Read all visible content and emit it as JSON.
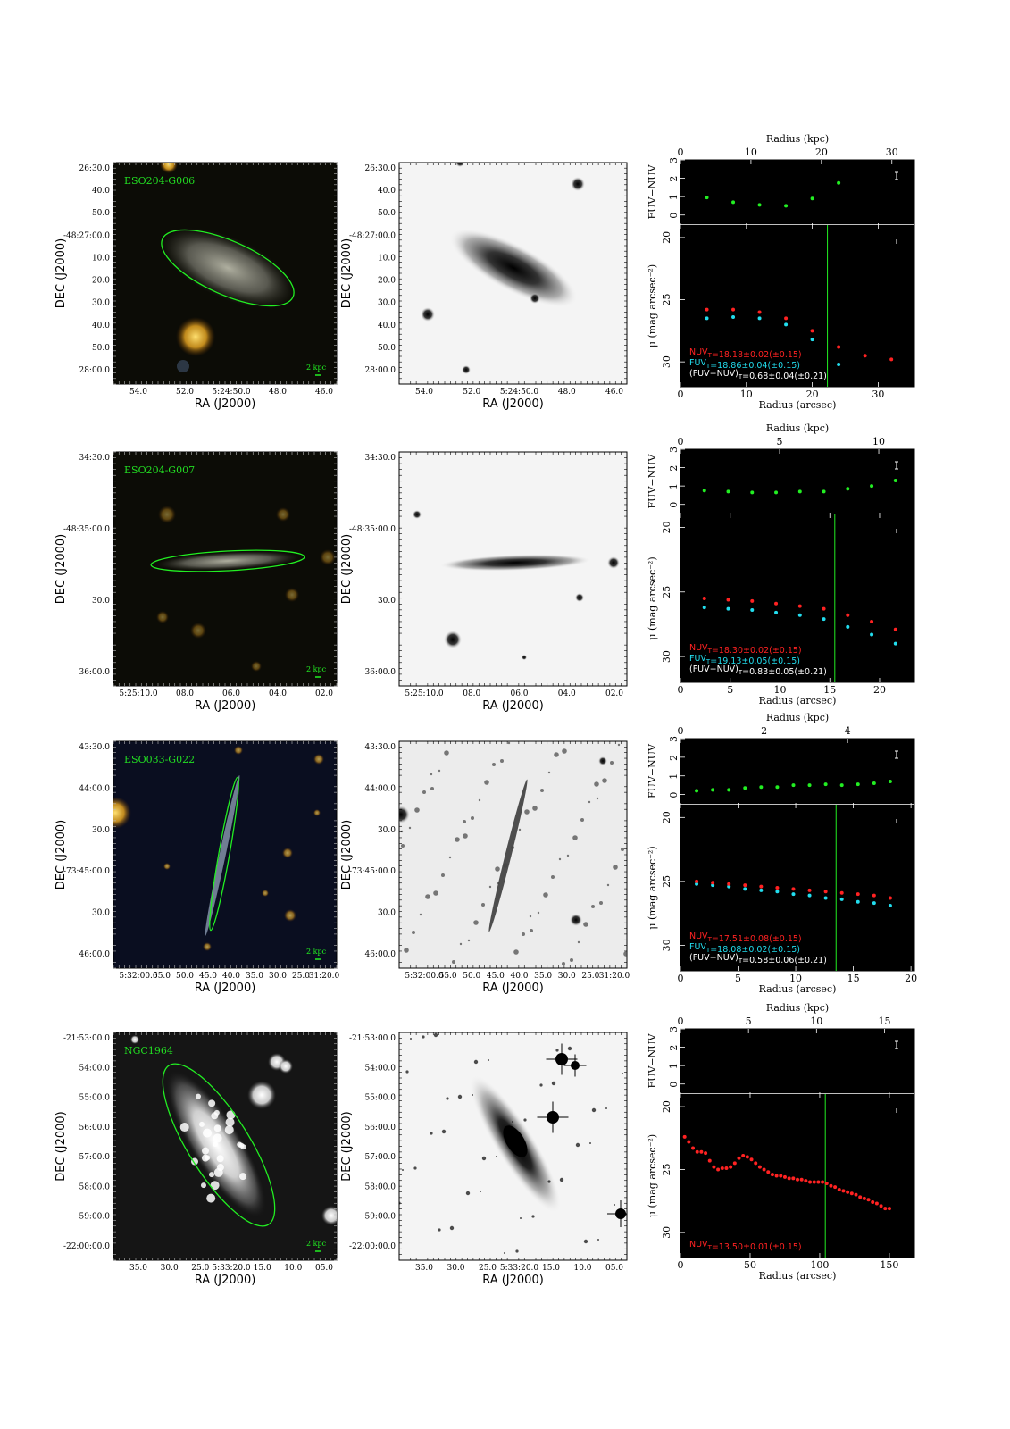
{
  "colors": {
    "green": "#22ee22",
    "nuv": "#ff2222",
    "fuv": "#22ddee",
    "white": "#ffffff",
    "label_green": "#22dd22"
  },
  "common": {
    "ra_label": "RA (J2000)",
    "dec_label": "DEC (J2000)",
    "radius_kpc_label": "Radius (kpc)",
    "radius_arcsec_label": "Radius (arcsec)",
    "color_ylabel": "FUV−NUV",
    "mu_ylabel": "μ (mag arcsec⁻²)",
    "scalebar_label": "2 kpc"
  },
  "panels": [
    {
      "name": "ESO204-G006",
      "dec_ticks": [
        "26:30.0",
        "40.0",
        "50.0",
        "-48:27:00.0",
        "10.0",
        "20.0",
        "30.0",
        "40.0",
        "50.0",
        "28:00.0"
      ],
      "ra_ticks": [
        "54.0",
        "52.0",
        "5:24:50.0",
        "48.0",
        "46.0"
      ],
      "gray_dec_ticks": [
        "26:30.0",
        "40.0",
        "50.0",
        "-48:27:00.0",
        "10.0",
        "20.0",
        "30.0",
        "40.0",
        "50.0",
        "28:00.0"
      ],
      "gray_ra_ticks": [
        "54.0",
        "52.0",
        "5:24:50.0",
        "48.0",
        "46.0"
      ],
      "chart_data": {
        "type": "scatter",
        "kpc_ticks": [
          0,
          10,
          20,
          30
        ],
        "arcsec_ticks": [
          0,
          10,
          20,
          30
        ],
        "xlim_arcsec": [
          0,
          35.5
        ],
        "xlim_kpc": [
          0,
          33.2
        ],
        "color_ylim": [
          -0.5,
          3.0
        ],
        "color_yticks": [
          0,
          1,
          2,
          3
        ],
        "mu_ylim": [
          32,
          19
        ],
        "mu_yticks": [
          20,
          25,
          30
        ],
        "vline_arcsec": 22.3,
        "fuv_nuv": {
          "x": [
            4,
            8,
            12,
            16,
            20,
            24
          ],
          "y": [
            0.95,
            0.7,
            0.55,
            0.5,
            0.9,
            1.75
          ]
        },
        "nuv": {
          "x": [
            4,
            8,
            12,
            16,
            20,
            24,
            28,
            32
          ],
          "y": [
            25.8,
            25.8,
            26.0,
            26.5,
            27.5,
            28.8,
            29.5,
            29.8
          ]
        },
        "fuv": {
          "x": [
            4,
            8,
            12,
            16,
            20,
            24
          ],
          "y": [
            26.5,
            26.4,
            26.5,
            27.0,
            28.2,
            30.2
          ]
        },
        "legend_nuv": "NUV_T=18.18±0.02(±0.15)",
        "legend_fuv": "FUV_T=18.86±0.04(±0.15)",
        "legend_col": "(FUV−NUV)_T=0.68±0.04(±0.21)"
      }
    },
    {
      "name": "ESO204-G007",
      "dec_ticks": [
        "34:30.0",
        "-48:35:00.0",
        "30.0",
        "36:00.0"
      ],
      "ra_ticks": [
        "5:25:10.0",
        "08.0",
        "06.0",
        "04.0",
        "02.0"
      ],
      "gray_dec_ticks": [
        "34:30.0",
        "-48:35:00.0",
        "30.0",
        "36:00.0"
      ],
      "gray_ra_ticks": [
        "5:25:10.0",
        "08.0",
        "06.0",
        "04.0",
        "02.0"
      ],
      "chart_data": {
        "type": "scatter",
        "kpc_ticks": [
          0,
          5,
          10
        ],
        "arcsec_ticks": [
          0,
          5,
          10,
          15,
          20
        ],
        "xlim_arcsec": [
          0,
          23.5
        ],
        "xlim_kpc": [
          0,
          11.8
        ],
        "color_ylim": [
          -0.5,
          3.0
        ],
        "color_yticks": [
          0,
          1,
          2,
          3
        ],
        "mu_ylim": [
          32,
          19
        ],
        "mu_yticks": [
          20,
          25,
          30
        ],
        "vline_arcsec": 15.5,
        "fuv_nuv": {
          "x": [
            2.4,
            4.8,
            7.2,
            9.6,
            12.0,
            14.4,
            16.8,
            19.2,
            21.6
          ],
          "y": [
            0.75,
            0.7,
            0.65,
            0.65,
            0.7,
            0.7,
            0.85,
            1.0,
            1.3
          ]
        },
        "nuv": {
          "x": [
            2.4,
            4.8,
            7.2,
            9.6,
            12.0,
            14.4,
            16.8,
            19.2,
            21.6
          ],
          "y": [
            25.5,
            25.6,
            25.7,
            25.9,
            26.1,
            26.3,
            26.8,
            27.3,
            27.9
          ]
        },
        "fuv": {
          "x": [
            2.4,
            4.8,
            7.2,
            9.6,
            12.0,
            14.4,
            16.8,
            19.2,
            21.6
          ],
          "y": [
            26.2,
            26.3,
            26.4,
            26.6,
            26.8,
            27.1,
            27.7,
            28.3,
            29.0
          ]
        },
        "legend_nuv": "NUV_T=18.30±0.02(±0.15)",
        "legend_fuv": "FUV_T=19.13±0.05(±0.15)",
        "legend_col": "(FUV−NUV)_T=0.83±0.05(±0.21)"
      }
    },
    {
      "name": "ESO033-G022",
      "dec_ticks": [
        "43:30.0",
        "44:00.0",
        "30.0",
        "-73:45:00.0",
        "30.0",
        "46:00.0"
      ],
      "ra_ticks": [
        "5:32:00.0",
        "55.0",
        "50.0",
        "45.0",
        "40.0",
        "35.0",
        "30.0",
        "25.0",
        "31:20.0"
      ],
      "gray_dec_ticks": [
        "43:30.0",
        "44:00.0",
        "30.0",
        "-73:45:00.0",
        "30.0",
        "46:00.0"
      ],
      "gray_ra_ticks": [
        "5:32:00.0",
        "55.0",
        "50.0",
        "45.0",
        "40.0",
        "35.0",
        "30.0",
        "25.0",
        "31:20.0"
      ],
      "chart_data": {
        "type": "scatter",
        "kpc_ticks": [
          0,
          2,
          4
        ],
        "arcsec_ticks": [
          0,
          5,
          10,
          15,
          20
        ],
        "xlim_arcsec": [
          0,
          20.3
        ],
        "xlim_kpc": [
          0,
          5.6
        ],
        "color_ylim": [
          -0.5,
          3.0
        ],
        "color_yticks": [
          0,
          1,
          2,
          3
        ],
        "mu_ylim": [
          32,
          19
        ],
        "mu_yticks": [
          20,
          25,
          30
        ],
        "vline_arcsec": 13.5,
        "fuv_nuv": {
          "x": [
            1.4,
            2.8,
            4.2,
            5.6,
            7.0,
            8.4,
            9.8,
            11.2,
            12.6,
            14.0,
            15.4,
            16.8,
            18.2
          ],
          "y": [
            0.2,
            0.25,
            0.25,
            0.35,
            0.4,
            0.4,
            0.5,
            0.5,
            0.55,
            0.5,
            0.55,
            0.6,
            0.7
          ]
        },
        "nuv": {
          "x": [
            1.4,
            2.8,
            4.2,
            5.6,
            7.0,
            8.4,
            9.8,
            11.2,
            12.6,
            14.0,
            15.4,
            16.8,
            18.2
          ],
          "y": [
            25.0,
            25.1,
            25.2,
            25.3,
            25.4,
            25.5,
            25.6,
            25.7,
            25.8,
            25.9,
            26.0,
            26.1,
            26.3
          ]
        },
        "fuv": {
          "x": [
            1.4,
            2.8,
            4.2,
            5.6,
            7.0,
            8.4,
            9.8,
            11.2,
            12.6,
            14.0,
            15.4,
            16.8,
            18.2
          ],
          "y": [
            25.2,
            25.3,
            25.4,
            25.6,
            25.7,
            25.8,
            26.0,
            26.1,
            26.3,
            26.4,
            26.6,
            26.7,
            26.9
          ]
        },
        "legend_nuv": "NUV_T=17.51±0.08(±0.15)",
        "legend_fuv": "FUV_T=18.08±0.02(±0.15)",
        "legend_col": "(FUV−NUV)_T=0.58±0.06(±0.21)"
      }
    },
    {
      "name": "NGC1964",
      "dec_ticks": [
        "-21:53:00.0",
        "54:00.0",
        "55:00.0",
        "56:00.0",
        "57:00.0",
        "58:00.0",
        "59:00.0",
        "-22:00:00.0"
      ],
      "ra_ticks": [
        "35.0",
        "30.0",
        "25.0",
        "5:33:20.0",
        "15.0",
        "10.0",
        "05.0"
      ],
      "gray_dec_ticks": [
        "-21:53:00.0",
        "54:00.0",
        "55:00.0",
        "56:00.0",
        "57:00.0",
        "58:00.0",
        "59:00.0",
        "-22:00:00.0"
      ],
      "gray_ra_ticks": [
        "35.0",
        "30.0",
        "25.0",
        "5:33:20.0",
        "15.0",
        "10.0",
        "05.0"
      ],
      "chart_data": {
        "type": "scatter",
        "kpc_ticks": [
          0,
          5,
          10,
          15
        ],
        "arcsec_ticks": [
          0,
          50,
          100,
          150
        ],
        "xlim_arcsec": [
          0,
          168
        ],
        "xlim_kpc": [
          0,
          17.2
        ],
        "color_ylim": [
          -0.5,
          3.0
        ],
        "color_yticks": [
          0,
          1,
          2,
          3
        ],
        "mu_ylim": [
          32,
          19
        ],
        "mu_yticks": [
          20,
          25,
          30
        ],
        "vline_arcsec": 104,
        "fuv_nuv": {
          "x": [],
          "y": []
        },
        "nuv": {
          "x": [
            3,
            6,
            9,
            12,
            15,
            18,
            21,
            24,
            27,
            30,
            33,
            36,
            39,
            42,
            45,
            48,
            51,
            54,
            57,
            60,
            63,
            66,
            69,
            72,
            75,
            78,
            81,
            84,
            87,
            90,
            93,
            96,
            99,
            102,
            105,
            108,
            111,
            114,
            117,
            120,
            123,
            126,
            129,
            132,
            135,
            138,
            141,
            144,
            147,
            150
          ],
          "y": [
            22.4,
            22.8,
            23.3,
            23.6,
            23.6,
            23.7,
            24.3,
            24.8,
            25.0,
            24.9,
            24.9,
            24.8,
            24.5,
            24.1,
            23.9,
            24.0,
            24.2,
            24.5,
            24.8,
            25.0,
            25.2,
            25.4,
            25.5,
            25.5,
            25.6,
            25.7,
            25.7,
            25.8,
            25.8,
            25.9,
            26.0,
            26.0,
            26.0,
            26.0,
            26.1,
            26.3,
            26.4,
            26.6,
            26.7,
            26.8,
            26.9,
            27.0,
            27.2,
            27.3,
            27.4,
            27.6,
            27.7,
            27.9,
            28.1,
            28.1
          ]
        },
        "fuv": {
          "x": [],
          "y": []
        },
        "legend_nuv": "NUV_T=13.50±0.01(±0.15)",
        "legend_fuv": "",
        "legend_col": ""
      }
    }
  ]
}
